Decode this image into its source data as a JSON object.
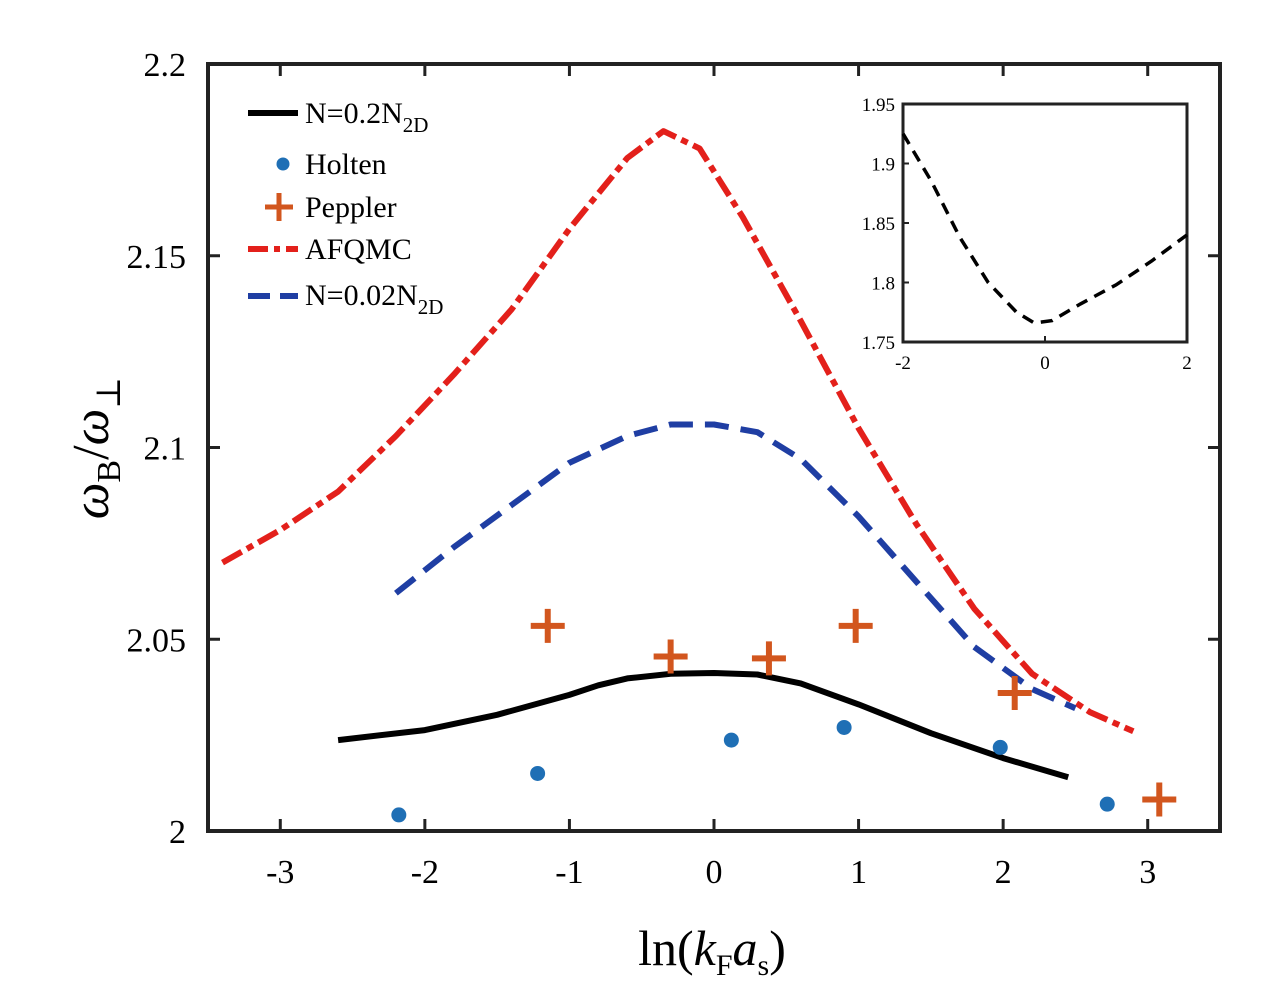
{
  "chart_data": {
    "type": "line",
    "title": "",
    "xlabel": {
      "fn": "ln(",
      "k": "k",
      "k_sub": "F",
      "a": "a",
      "a_sub": "s",
      "close": ")"
    },
    "ylabel": {
      "num": "ω",
      "num_sub": "B",
      "slash": "/",
      "den": "ω",
      "den_sub": "⊥"
    },
    "xlim": [
      -3.5,
      3.5
    ],
    "ylim": [
      2.0,
      2.2
    ],
    "xticks": [
      -3,
      -2,
      -1,
      0,
      1,
      2,
      3
    ],
    "yticks": [
      2,
      2.05,
      2.1,
      2.15,
      2.2
    ],
    "xtick_labels": [
      "-3",
      "-2",
      "-1",
      "0",
      "1",
      "2",
      "3"
    ],
    "ytick_labels": [
      "2",
      "2.05",
      "2.1",
      "2.15",
      "2.2"
    ],
    "series": [
      {
        "name": "N=0.2N",
        "sub": "2D",
        "style": "solid",
        "color": "#000000",
        "x": [
          -2.6,
          -2.0,
          -1.5,
          -1.0,
          -0.8,
          -0.6,
          -0.3,
          0.0,
          0.3,
          0.6,
          1.0,
          1.5,
          2.0,
          2.45
        ],
        "y": [
          2.0237,
          2.0263,
          2.0303,
          2.0355,
          2.038,
          2.0398,
          2.041,
          2.0412,
          2.0408,
          2.0385,
          2.033,
          2.0255,
          2.019,
          2.014
        ]
      },
      {
        "name": "Holten",
        "style": "dots",
        "color": "#1f6fb5",
        "x": [
          -2.18,
          -1.22,
          0.12,
          0.9,
          1.98,
          2.72
        ],
        "y": [
          2.0042,
          2.015,
          2.0237,
          2.027,
          2.0218,
          2.007
        ]
      },
      {
        "name": "Peppler",
        "style": "plus",
        "color": "#d2561e",
        "x": [
          -1.15,
          -0.3,
          0.38,
          0.98,
          2.08,
          3.08
        ],
        "y": [
          2.0535,
          2.0455,
          2.045,
          2.0535,
          2.036,
          2.0082
        ]
      },
      {
        "name": "AFQMC",
        "style": "dashdot",
        "color": "#e3201b",
        "x": [
          -3.4,
          -3.0,
          -2.6,
          -2.2,
          -1.8,
          -1.4,
          -1.0,
          -0.6,
          -0.35,
          -0.1,
          0.2,
          0.6,
          1.0,
          1.4,
          1.8,
          2.2,
          2.6,
          2.9
        ],
        "y": [
          2.07,
          2.0785,
          2.0885,
          2.103,
          2.119,
          2.136,
          2.157,
          2.1755,
          2.1825,
          2.178,
          2.16,
          2.133,
          2.105,
          2.08,
          2.058,
          2.041,
          2.031,
          2.026
        ]
      },
      {
        "name": "N=0.02N",
        "sub": "2D",
        "style": "dashed",
        "color": "#1f3ea3",
        "x": [
          -2.2,
          -1.8,
          -1.4,
          -1.0,
          -0.6,
          -0.3,
          0.0,
          0.3,
          0.6,
          1.0,
          1.4,
          1.8,
          2.2,
          2.5
        ],
        "y": [
          2.062,
          2.074,
          2.085,
          2.096,
          2.103,
          2.106,
          2.106,
          2.104,
          2.097,
          2.082,
          2.065,
          2.048,
          2.037,
          2.032
        ]
      }
    ],
    "inset": {
      "type": "line",
      "xlim": [
        -2,
        2
      ],
      "ylim": [
        1.75,
        1.95
      ],
      "xticks": [
        -2,
        0,
        2
      ],
      "yticks": [
        1.75,
        1.8,
        1.85,
        1.9,
        1.95
      ],
      "xtick_labels": [
        "-2",
        "0",
        "2"
      ],
      "ytick_labels": [
        "1.75",
        "1.8",
        "1.85",
        "1.9",
        "1.95"
      ],
      "series": [
        {
          "style": "dashed",
          "color": "#000000",
          "x": [
            -2.0,
            -1.6,
            -1.2,
            -0.8,
            -0.4,
            -0.15,
            0.1,
            0.5,
            1.0,
            1.5,
            2.0
          ],
          "y": [
            1.925,
            1.885,
            1.838,
            1.8,
            1.775,
            1.766,
            1.768,
            1.782,
            1.798,
            1.818,
            1.84
          ]
        }
      ]
    }
  }
}
